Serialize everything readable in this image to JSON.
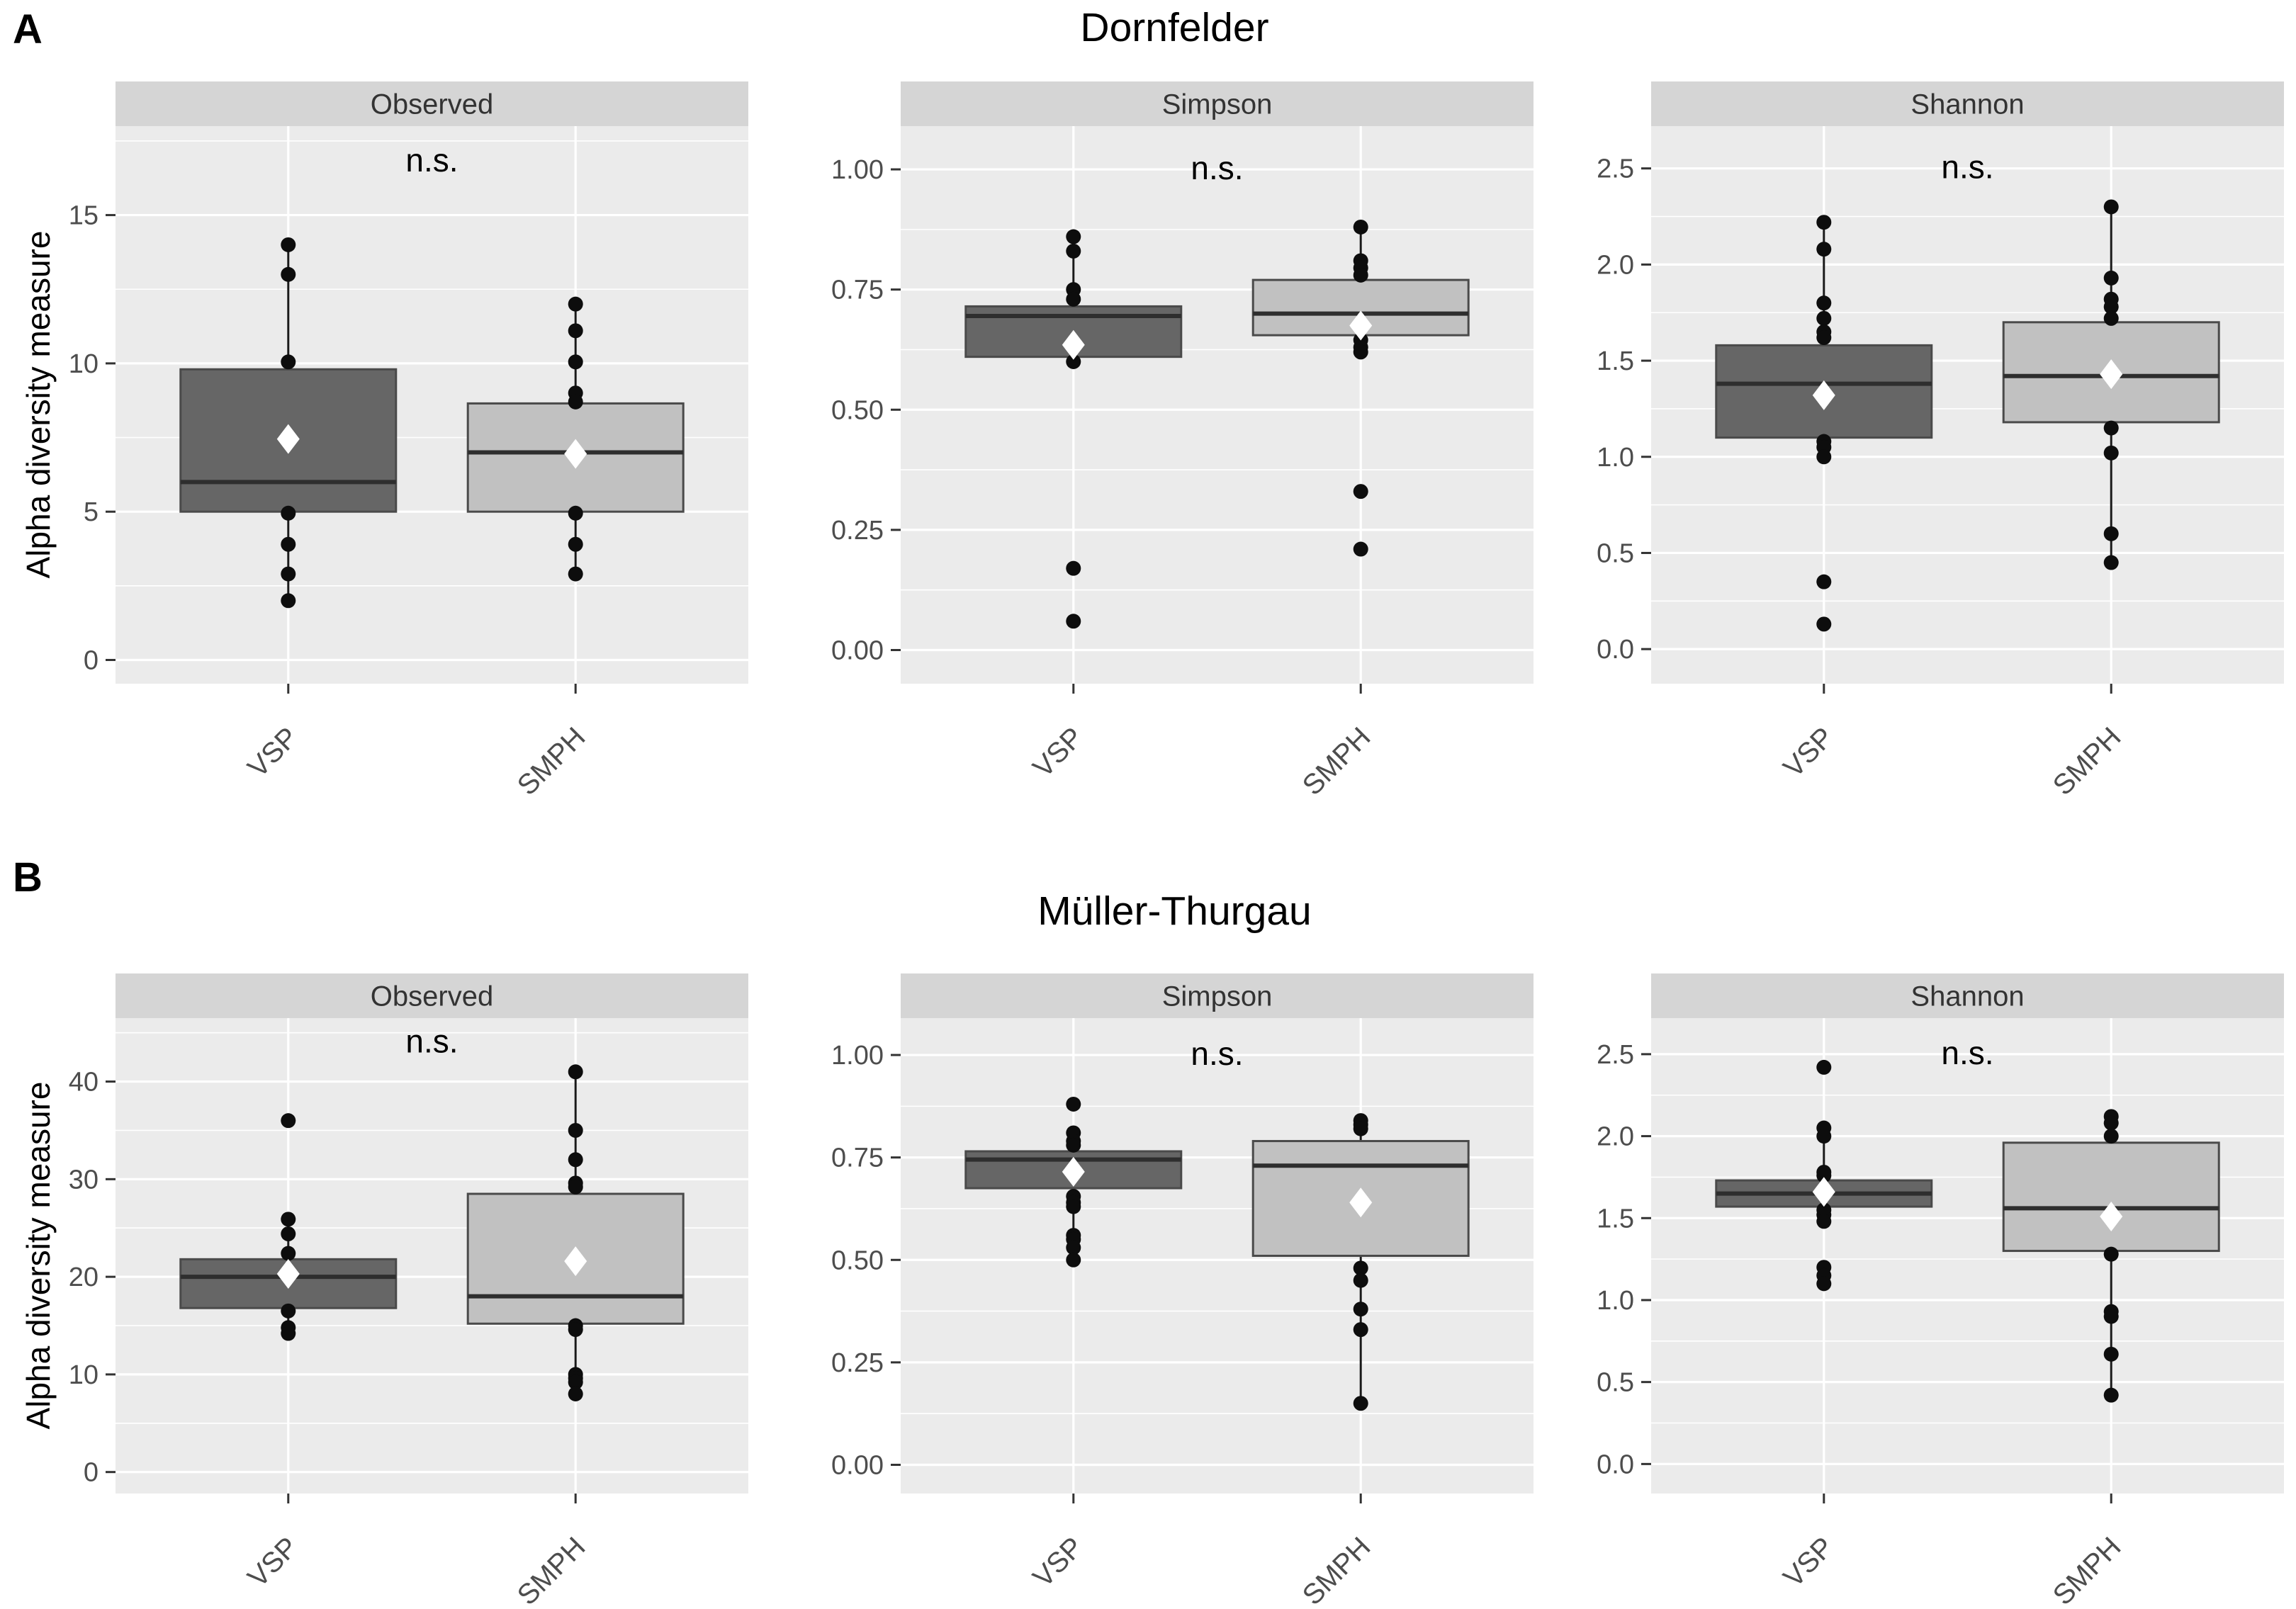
{
  "colors": {
    "dark_box_fill": "#666666",
    "light_box_fill": "#c1c1c1",
    "box_border": "#4a4a4a",
    "median_line": "#2e2e2e",
    "whisker": "#1a1a1a",
    "point": "#0d0d0d",
    "mean_marker": "#ffffff",
    "panel_background": "#ebebeb",
    "strip_background": "#d5d5d5",
    "grid_line": "#ffffff",
    "axis_text": "#4d4d4d",
    "strip_text": "#333333",
    "title_text": "#000000"
  },
  "chart_data": [
    {
      "type": "boxplot",
      "panel_label": "A",
      "title": "Dornfelder",
      "ylabel": "Alpha diversity measure",
      "significance_label": "n.s.",
      "categories": [
        "VSP",
        "SMPH"
      ],
      "legend": "none",
      "facets": [
        {
          "label": "Observed",
          "ylim": [
            -0.8,
            18.0
          ],
          "yticks": [
            {
              "v": 0,
              "t": "0"
            },
            {
              "v": 5,
              "t": "5"
            },
            {
              "v": 10,
              "t": "10"
            },
            {
              "v": 15,
              "t": "15"
            }
          ],
          "ns_y": 16.8,
          "boxes": [
            {
              "group": "VSP",
              "shade": "dark",
              "q1": 5.0,
              "median": 6.0,
              "q3": 9.8,
              "whisker_low": 2.0,
              "whisker_high": 14.0,
              "mean": 7.45,
              "points": [
                14,
                13,
                10.05,
                4.95,
                3.9,
                2.9,
                2.0
              ]
            },
            {
              "group": "SMPH",
              "shade": "light",
              "q1": 5.0,
              "median": 7.0,
              "q3": 8.65,
              "whisker_low": 2.9,
              "whisker_high": 12.0,
              "mean": 6.95,
              "points": [
                12,
                11.1,
                10.05,
                9.0,
                8.7,
                4.95,
                3.9,
                2.9
              ]
            }
          ]
        },
        {
          "label": "Simpson",
          "ylim": [
            -0.07,
            1.09
          ],
          "yticks": [
            {
              "v": 0,
              "t": "0.00"
            },
            {
              "v": 0.25,
              "t": "0.25"
            },
            {
              "v": 0.5,
              "t": "0.50"
            },
            {
              "v": 0.75,
              "t": "0.75"
            },
            {
              "v": 1.0,
              "t": "1.00"
            }
          ],
          "ns_y": 1.0,
          "boxes": [
            {
              "group": "VSP",
              "shade": "dark",
              "q1": 0.61,
              "median": 0.695,
              "q3": 0.715,
              "whisker_low": 0.6,
              "whisker_high": 0.86,
              "mean": 0.635,
              "points": [
                0.86,
                0.83,
                0.75,
                0.73,
                0.6,
                0.17,
                0.06
              ]
            },
            {
              "group": "SMPH",
              "shade": "light",
              "q1": 0.655,
              "median": 0.7,
              "q3": 0.77,
              "whisker_low": 0.62,
              "whisker_high": 0.88,
              "mean": 0.675,
              "points": [
                0.88,
                0.81,
                0.795,
                0.78,
                0.645,
                0.63,
                0.62,
                0.33,
                0.21
              ]
            }
          ]
        },
        {
          "label": "Shannon",
          "ylim": [
            -0.18,
            2.72
          ],
          "yticks": [
            {
              "v": 0,
              "t": "0.0"
            },
            {
              "v": 0.5,
              "t": "0.5"
            },
            {
              "v": 1.0,
              "t": "1.0"
            },
            {
              "v": 1.5,
              "t": "1.5"
            },
            {
              "v": 2.0,
              "t": "2.0"
            },
            {
              "v": 2.5,
              "t": "2.5"
            }
          ],
          "ns_y": 2.5,
          "boxes": [
            {
              "group": "VSP",
              "shade": "dark",
              "q1": 1.1,
              "median": 1.38,
              "q3": 1.58,
              "whisker_low": 1.0,
              "whisker_high": 2.22,
              "mean": 1.32,
              "points": [
                2.22,
                2.08,
                1.8,
                1.72,
                1.65,
                1.62,
                1.08,
                1.05,
                1.0,
                0.35,
                0.13
              ]
            },
            {
              "group": "SMPH",
              "shade": "light",
              "q1": 1.18,
              "median": 1.42,
              "q3": 1.7,
              "whisker_low": 0.45,
              "whisker_high": 2.3,
              "mean": 1.43,
              "points": [
                2.3,
                1.93,
                1.82,
                1.78,
                1.72,
                1.15,
                1.02,
                0.6,
                0.45
              ]
            }
          ]
        }
      ]
    },
    {
      "type": "boxplot",
      "panel_label": "B",
      "title": "Müller-Thurgau",
      "ylabel": "Alpha diversity measure",
      "significance_label": "n.s.",
      "categories": [
        "VSP",
        "SMPH"
      ],
      "legend": "none",
      "facets": [
        {
          "label": "Observed",
          "ylim": [
            -2.2,
            46.5
          ],
          "yticks": [
            {
              "v": 0,
              "t": "0"
            },
            {
              "v": 10,
              "t": "10"
            },
            {
              "v": 20,
              "t": "20"
            },
            {
              "v": 30,
              "t": "30"
            },
            {
              "v": 40,
              "t": "40"
            }
          ],
          "ns_y": 44,
          "boxes": [
            {
              "group": "VSP",
              "shade": "dark",
              "q1": 16.8,
              "median": 20.0,
              "q3": 21.8,
              "whisker_low": 14.2,
              "whisker_high": 25.9,
              "mean": 20.3,
              "points": [
                36,
                25.9,
                24.4,
                22.4,
                16.5,
                14.8,
                14.2
              ]
            },
            {
              "group": "SMPH",
              "shade": "light",
              "q1": 15.2,
              "median": 18.0,
              "q3": 28.5,
              "whisker_low": 8.0,
              "whisker_high": 41.0,
              "mean": 21.6,
              "points": [
                41,
                35,
                32,
                29.6,
                29.2,
                15.0,
                14.6,
                10,
                9.6,
                9.2,
                8.0
              ]
            }
          ]
        },
        {
          "label": "Simpson",
          "ylim": [
            -0.07,
            1.09
          ],
          "yticks": [
            {
              "v": 0,
              "t": "0.00"
            },
            {
              "v": 0.25,
              "t": "0.25"
            },
            {
              "v": 0.5,
              "t": "0.50"
            },
            {
              "v": 0.75,
              "t": "0.75"
            },
            {
              "v": 1.0,
              "t": "1.00"
            }
          ],
          "ns_y": 1.0,
          "boxes": [
            {
              "group": "VSP",
              "shade": "dark",
              "q1": 0.675,
              "median": 0.745,
              "q3": 0.765,
              "whisker_low": 0.5,
              "whisker_high": 0.81,
              "mean": 0.715,
              "points": [
                0.88,
                0.81,
                0.79,
                0.78,
                0.655,
                0.64,
                0.63,
                0.56,
                0.55,
                0.53,
                0.5
              ]
            },
            {
              "group": "SMPH",
              "shade": "light",
              "q1": 0.51,
              "median": 0.73,
              "q3": 0.79,
              "whisker_low": 0.15,
              "whisker_high": 0.84,
              "mean": 0.64,
              "points": [
                0.84,
                0.83,
                0.82,
                0.48,
                0.45,
                0.38,
                0.33,
                0.15
              ]
            }
          ]
        },
        {
          "label": "Shannon",
          "ylim": [
            -0.18,
            2.72
          ],
          "yticks": [
            {
              "v": 0,
              "t": "0.0"
            },
            {
              "v": 0.5,
              "t": "0.5"
            },
            {
              "v": 1.0,
              "t": "1.0"
            },
            {
              "v": 1.5,
              "t": "1.5"
            },
            {
              "v": 2.0,
              "t": "2.0"
            },
            {
              "v": 2.5,
              "t": "2.5"
            }
          ],
          "ns_y": 2.5,
          "boxes": [
            {
              "group": "VSP",
              "shade": "dark",
              "q1": 1.57,
              "median": 1.65,
              "q3": 1.73,
              "whisker_low": 1.48,
              "whisker_high": 2.05,
              "mean": 1.66,
              "points": [
                2.42,
                2.05,
                2.0,
                1.78,
                1.76,
                1.55,
                1.52,
                1.48,
                1.2,
                1.15,
                1.1
              ]
            },
            {
              "group": "SMPH",
              "shade": "light",
              "q1": 1.3,
              "median": 1.56,
              "q3": 1.96,
              "whisker_low": 0.4,
              "whisker_high": 2.12,
              "mean": 1.51,
              "points": [
                2.12,
                2.08,
                2.0,
                1.28,
                0.93,
                0.9,
                0.67,
                0.42
              ]
            }
          ]
        }
      ]
    }
  ]
}
